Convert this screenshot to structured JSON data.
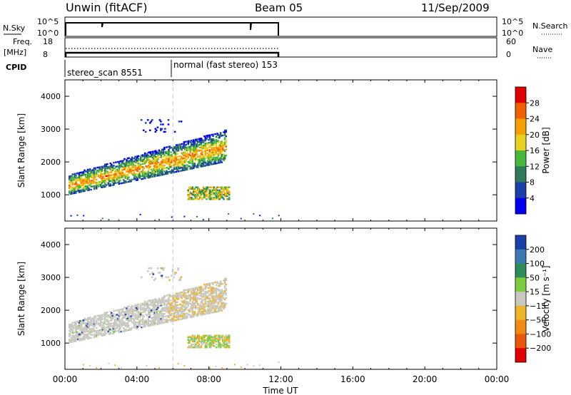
{
  "header": {
    "station": "Unwin (fitACF)",
    "beam": "Beam 05",
    "date": "11/Sep/2009"
  },
  "nsky_panel": {
    "left_label": "N.Sky",
    "left_ticks": [
      "10^5",
      "10^0"
    ],
    "right_ticks": [
      "10^5",
      "10^0"
    ],
    "right_label": "N.Search"
  },
  "freq_panel": {
    "left_label_1": "Freq.",
    "left_label_2": "[MHz]",
    "left_ticks": [
      "18",
      "8"
    ],
    "right_ticks": [
      "60",
      "0"
    ],
    "right_label": "Nave"
  },
  "cpid_panel": {
    "label": "CPID",
    "segments": [
      {
        "text": "stereo_scan 8551",
        "start": 0,
        "end": 6
      },
      {
        "text": "normal (fast stereo) 153",
        "start": 6,
        "end": 12
      }
    ]
  },
  "power_panel": {
    "ylabel": "Slant Range [km]",
    "yticks": [
      "1000",
      "2000",
      "3000",
      "4000"
    ],
    "colorbar_label": "Power [dB]",
    "colorbar_ticks": [
      "4",
      "8",
      "12",
      "16",
      "20",
      "24",
      "28"
    ],
    "colors": [
      "#0000ee",
      "#1a3fa8",
      "#2f7a5a",
      "#48b83c",
      "#e8d020",
      "#f5a000",
      "#ef6000",
      "#e00000"
    ]
  },
  "velocity_panel": {
    "ylabel": "Slant Range [km]",
    "yticks": [
      "1000",
      "2000",
      "3000",
      "4000"
    ],
    "colorbar_label": "Velocity [m s⁻¹]",
    "colorbar_ticks": [
      "200",
      "100",
      "50",
      "15",
      "−15",
      "−50",
      "−100",
      "−200"
    ],
    "colors": [
      "#1a3fa8",
      "#3c78b4",
      "#2e8c5a",
      "#7ccc3c",
      "#c8c8c0",
      "#f0b428",
      "#f08a14",
      "#e85a0a",
      "#e00000"
    ]
  },
  "xaxis": {
    "label": "Time UT",
    "ticks": [
      "00:00",
      "04:00",
      "08:00",
      "12:00",
      "16:00",
      "20:00",
      "00:00"
    ]
  },
  "chart_data": {
    "type": "heatmap",
    "x_unit": "hours UT",
    "xlim": [
      0,
      24
    ],
    "ylim": [
      200,
      4500
    ],
    "y_unit": "km",
    "data_end_hour": 12,
    "mode_change_hour": 6,
    "scatter_regions": [
      {
        "name": "main band",
        "x_start": 0.2,
        "x_end": 8.9,
        "range_lower_start": 1000,
        "range_upper_start": 1600,
        "range_lower_end": 2000,
        "range_upper_end": 2950
      },
      {
        "name": "low patch",
        "x_start": 6.8,
        "x_end": 9.1,
        "range_lower": 850,
        "range_upper": 1250
      },
      {
        "name": "high sparse",
        "x_start": 4.2,
        "x_end": 6.5,
        "range_lower": 2900,
        "range_upper": 3300
      }
    ]
  }
}
